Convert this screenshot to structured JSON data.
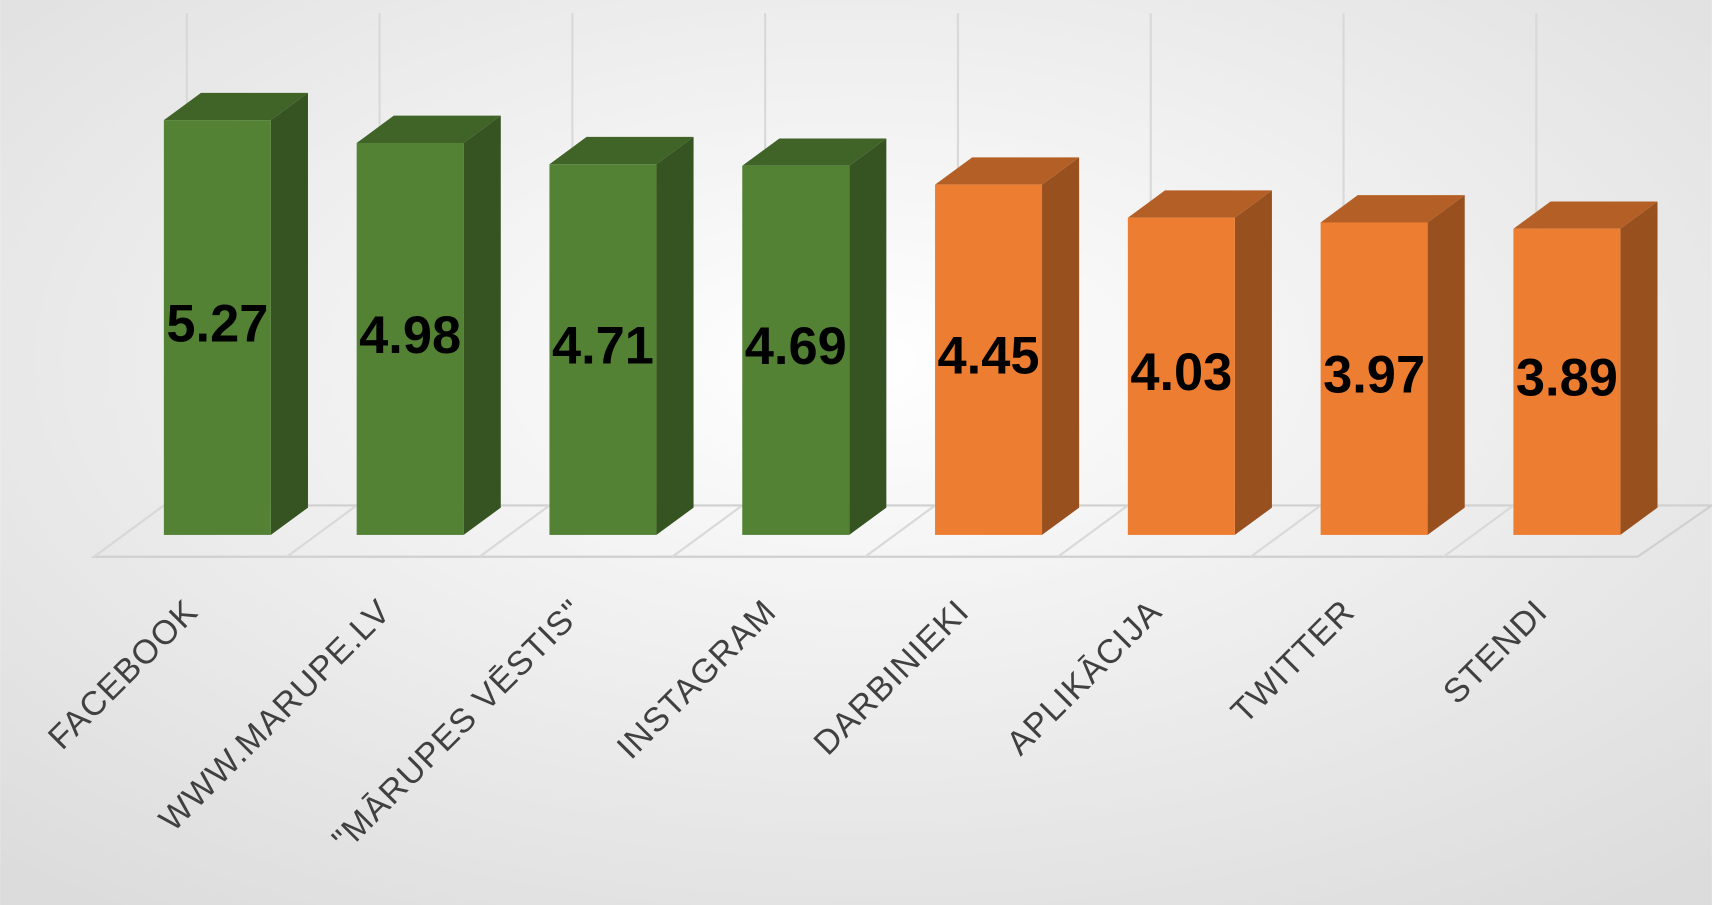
{
  "chart_data": {
    "type": "bar3d",
    "categories": [
      "FACEBOOK",
      "WWW.MARUPE.LV",
      "\"MĀRUPES VĒSTIS\"",
      "INSTAGRAM",
      "DARBINIEKI",
      "APLIKĀCIJA",
      "TWITTER",
      "STENDI"
    ],
    "values": [
      5.27,
      4.98,
      4.71,
      4.69,
      4.45,
      4.03,
      3.97,
      3.89
    ],
    "colors": [
      "#548235",
      "#548235",
      "#548235",
      "#548235",
      "#ed7d31",
      "#ed7d31",
      "#ed7d31",
      "#ed7d31"
    ],
    "grid": true
  }
}
